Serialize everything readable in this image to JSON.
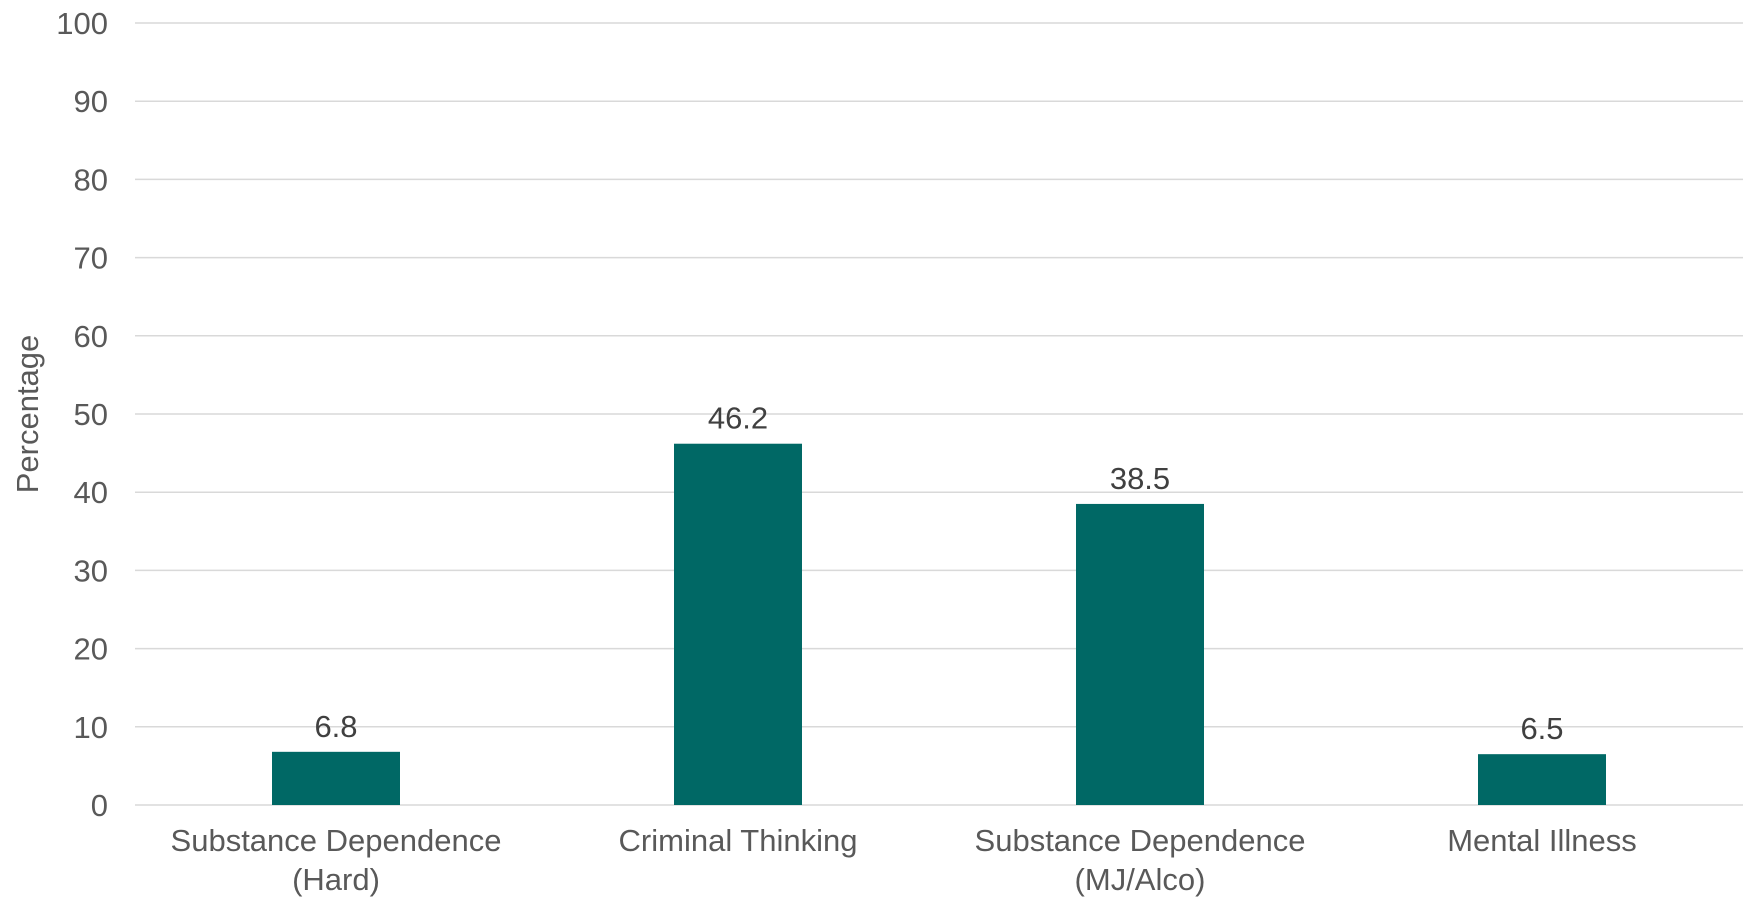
{
  "chart_data": {
    "type": "bar",
    "title": "",
    "xlabel": "",
    "ylabel": "Percentage",
    "ylim": [
      0,
      100
    ],
    "yticks": [
      0,
      10,
      20,
      30,
      40,
      50,
      60,
      70,
      80,
      90,
      100
    ],
    "grid": true,
    "legend": "none",
    "categories": [
      [
        "Substance Dependence",
        "(Hard)"
      ],
      [
        "Criminal Thinking"
      ],
      [
        "Substance Dependence",
        "(MJ/Alco)"
      ],
      [
        "Mental Illness"
      ]
    ],
    "values": [
      6.8,
      46.2,
      38.5,
      6.5
    ],
    "value_labels": [
      "6.8",
      "46.2",
      "38.5",
      "6.5"
    ],
    "colors": {
      "bar": "#006865",
      "grid": "#d9d9d9",
      "axis_text": "#595959",
      "value_text": "#404040"
    }
  }
}
